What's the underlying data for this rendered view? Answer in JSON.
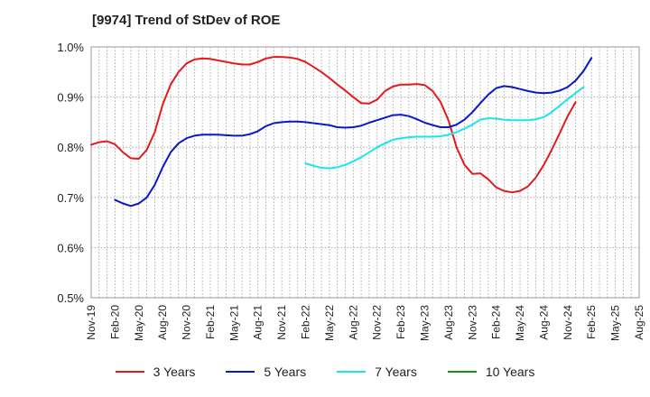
{
  "chart_data": {
    "type": "line",
    "title": "[9974]  Trend of StDev of ROE",
    "ylim": [
      0.5,
      1.0
    ],
    "yticks": [
      0.5,
      0.6,
      0.7,
      0.8,
      0.9,
      1.0
    ],
    "ytick_labels": [
      "0.5%",
      "0.6%",
      "0.7%",
      "0.8%",
      "0.9%",
      "1.0%"
    ],
    "xtick_labels": [
      "Nov-19",
      "Feb-20",
      "May-20",
      "Aug-20",
      "Nov-20",
      "Feb-21",
      "May-21",
      "Aug-21",
      "Nov-21",
      "Feb-22",
      "May-22",
      "Aug-22",
      "Nov-22",
      "Feb-23",
      "May-23",
      "Aug-23",
      "Nov-23",
      "Feb-24",
      "May-24",
      "Aug-24",
      "Nov-24",
      "Feb-25",
      "May-25",
      "Aug-25"
    ],
    "grid": true,
    "legend_position": "bottom",
    "series": [
      {
        "name": "3 Years",
        "color": "#e31a1c",
        "start_index": 0,
        "values": [
          0.805,
          0.81,
          0.812,
          0.806,
          0.79,
          0.778,
          0.777,
          0.795,
          0.83,
          0.885,
          0.925,
          0.95,
          0.967,
          0.975,
          0.977,
          0.976,
          0.973,
          0.97,
          0.967,
          0.965,
          0.965,
          0.97,
          0.977,
          0.98,
          0.98,
          0.979,
          0.976,
          0.97,
          0.96,
          0.95,
          0.938,
          0.925,
          0.913,
          0.9,
          0.888,
          0.887,
          0.895,
          0.912,
          0.921,
          0.925,
          0.925,
          0.926,
          0.924,
          0.912,
          0.89,
          0.853,
          0.8,
          0.765,
          0.747,
          0.748,
          0.736,
          0.72,
          0.713,
          0.71,
          0.713,
          0.722,
          0.74,
          0.765,
          0.795,
          0.828,
          0.862,
          0.89
        ]
      },
      {
        "name": "5 Years",
        "color": "#0a19c8",
        "start_index": 3,
        "values": [
          0.695,
          0.688,
          0.683,
          0.688,
          0.7,
          0.725,
          0.76,
          0.79,
          0.808,
          0.818,
          0.823,
          0.825,
          0.825,
          0.825,
          0.824,
          0.823,
          0.823,
          0.826,
          0.832,
          0.842,
          0.848,
          0.85,
          0.851,
          0.851,
          0.85,
          0.848,
          0.846,
          0.844,
          0.84,
          0.839,
          0.84,
          0.843,
          0.849,
          0.854,
          0.859,
          0.864,
          0.865,
          0.862,
          0.856,
          0.849,
          0.844,
          0.84,
          0.84,
          0.845,
          0.855,
          0.87,
          0.888,
          0.905,
          0.918,
          0.922,
          0.92,
          0.916,
          0.912,
          0.909,
          0.908,
          0.909,
          0.913,
          0.92,
          0.933,
          0.952,
          0.978
        ]
      },
      {
        "name": "7 Years",
        "color": "#19e6ec",
        "start_index": 27,
        "values": [
          0.768,
          0.763,
          0.759,
          0.758,
          0.76,
          0.765,
          0.772,
          0.78,
          0.79,
          0.8,
          0.808,
          0.815,
          0.818,
          0.82,
          0.821,
          0.821,
          0.821,
          0.822,
          0.825,
          0.83,
          0.837,
          0.845,
          0.855,
          0.858,
          0.857,
          0.855,
          0.854,
          0.854,
          0.854,
          0.856,
          0.86,
          0.87,
          0.883,
          0.896,
          0.908,
          0.92
        ]
      },
      {
        "name": "10 Years",
        "color": "#1a8c1a",
        "start_index": 0,
        "values": []
      }
    ]
  }
}
